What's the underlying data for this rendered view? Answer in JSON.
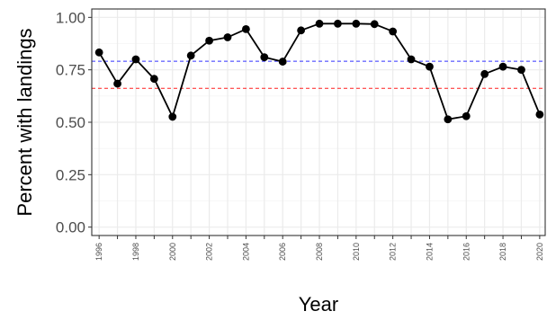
{
  "chart_data": {
    "type": "line",
    "title": "",
    "xlabel": "Year",
    "ylabel": "Percent with landings",
    "xlim": [
      1995.6,
      2020.3
    ],
    "ylim": [
      -0.04,
      1.04
    ],
    "x_ticks": [
      1996,
      1997,
      1998,
      1999,
      2000,
      2001,
      2002,
      2003,
      2004,
      2005,
      2006,
      2007,
      2008,
      2009,
      2010,
      2011,
      2012,
      2013,
      2014,
      2015,
      2016,
      2017,
      2018,
      2019,
      2020
    ],
    "x_tick_labels": [
      "1996",
      "1998",
      "2000",
      "2002",
      "2004",
      "2006",
      "2008",
      "2010",
      "2012",
      "2014",
      "2016",
      "2018",
      "2020"
    ],
    "y_ticks": [
      0.0,
      0.25,
      0.5,
      0.75,
      1.0
    ],
    "y_tick_labels": [
      "0.00",
      "0.25",
      "0.50",
      "0.75",
      "1.00"
    ],
    "grid": true,
    "series": [
      {
        "color": "#000000",
        "x": [
          1996,
          1997,
          1998,
          1999,
          2000,
          2001,
          2002,
          2003,
          2004,
          2005,
          2006,
          2007,
          2008,
          2009,
          2010,
          2011,
          2012,
          2013,
          2014,
          2015,
          2016,
          2017,
          2018,
          2019,
          2020
        ],
        "values": [
          0.833,
          0.684,
          0.8,
          0.707,
          0.526,
          0.818,
          0.889,
          0.905,
          0.944,
          0.81,
          0.789,
          0.938,
          0.97,
          0.97,
          0.97,
          0.968,
          0.933,
          0.8,
          0.765,
          0.514,
          0.529,
          0.73,
          0.765,
          0.75,
          0.537
        ]
      }
    ],
    "reference_lines": [
      {
        "y": 0.791,
        "color": "#3333ff",
        "style": "dashed"
      },
      {
        "y": 0.662,
        "color": "#ff2020",
        "style": "dashed"
      }
    ]
  }
}
